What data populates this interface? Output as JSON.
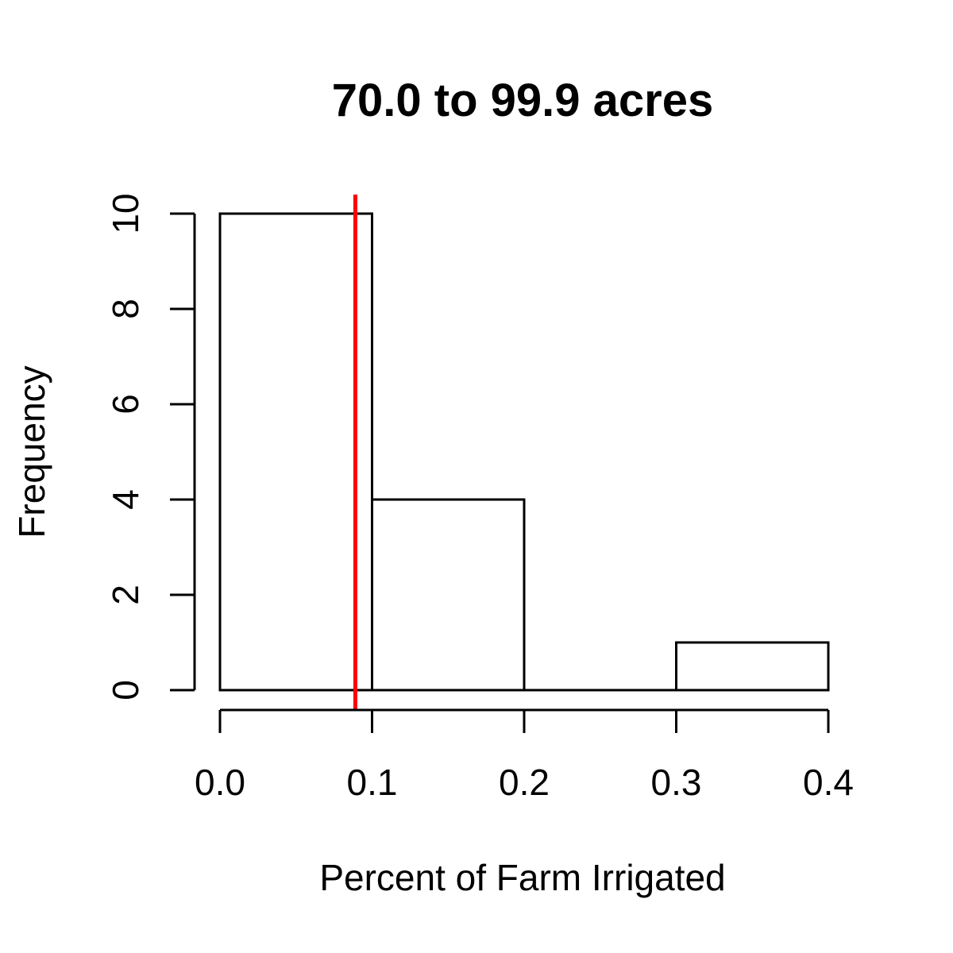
{
  "chart_data": {
    "type": "bar",
    "title": "70.0 to 99.9 acres",
    "xlabel": "Percent of Farm Irrigated",
    "ylabel": "Frequency",
    "bins": [
      [
        0.0,
        0.1
      ],
      [
        0.1,
        0.2
      ],
      [
        0.2,
        0.3
      ],
      [
        0.3,
        0.4
      ]
    ],
    "values": [
      10,
      4,
      0,
      1
    ],
    "xlim": [
      0.0,
      0.4
    ],
    "ylim": [
      0,
      10
    ],
    "x_ticks": [
      0.0,
      0.1,
      0.2,
      0.3,
      0.4
    ],
    "x_tick_labels": [
      "0.0",
      "0.1",
      "0.2",
      "0.3",
      "0.4"
    ],
    "y_ticks": [
      0,
      2,
      4,
      6,
      8,
      10
    ],
    "y_tick_labels": [
      "0",
      "2",
      "4",
      "6",
      "8",
      "10"
    ],
    "reference_line": {
      "x": 0.089,
      "color": "#ff0000"
    },
    "grid": false,
    "legend": "none"
  }
}
